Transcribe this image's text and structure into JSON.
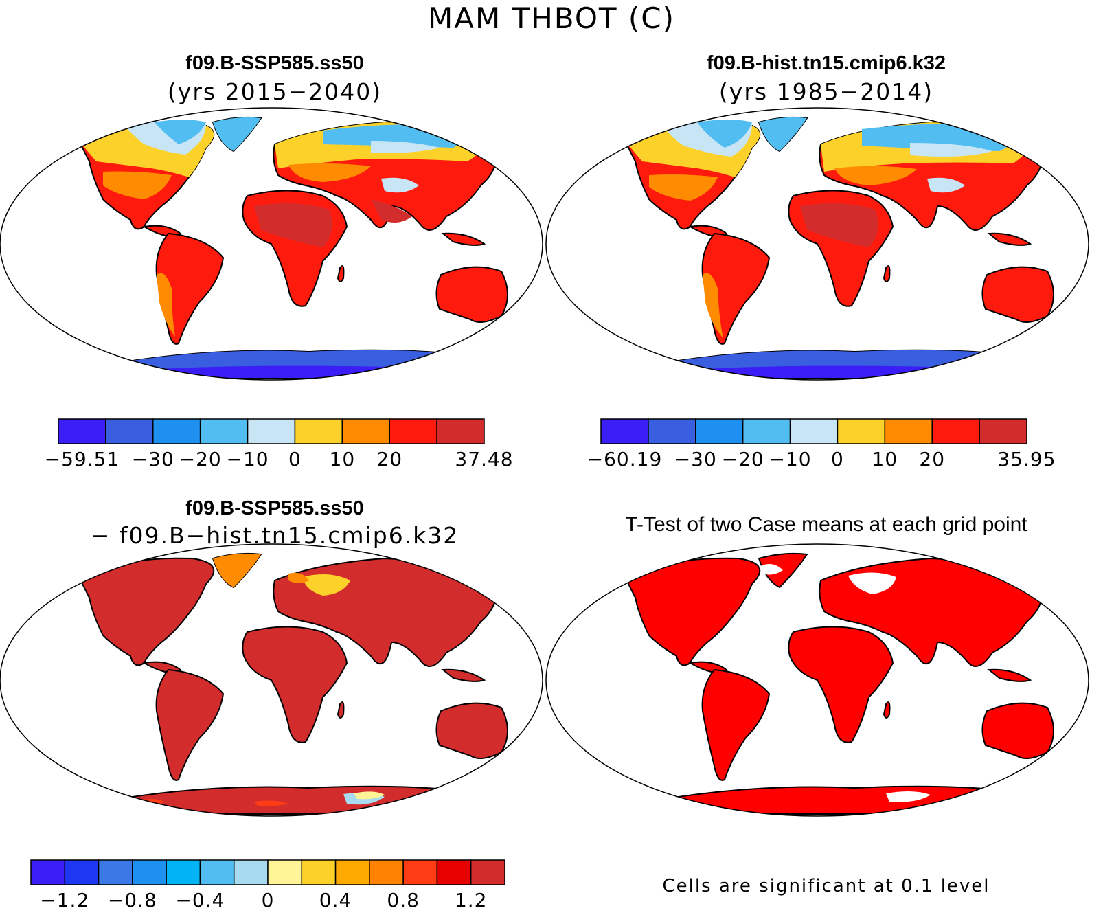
{
  "figure": {
    "title": "MAM THBOT (C)",
    "colors": {
      "land": "#d62f2f",
      "sig_red": "#ff0000",
      "outline": "#000000"
    }
  },
  "panels": {
    "top_left": {
      "title": "f09.B-SSP585.ss50",
      "subtitle": "(yrs 2015−2040)",
      "colorbar": {
        "colors": [
          "#3a1ef5",
          "#3a5ee0",
          "#1e90f0",
          "#52bdf0",
          "#c8e5f5",
          "#fcd22a",
          "#ff8c00",
          "#ff1a0e",
          "#d22c2c"
        ],
        "ticks": [
          "−59.51",
          "−30",
          "−20",
          "−10",
          "0",
          "10",
          "20",
          "37.48"
        ]
      }
    },
    "top_right": {
      "title": "f09.B-hist.tn15.cmip6.k32",
      "subtitle": "(yrs 1985−2014)",
      "colorbar": {
        "colors": [
          "#3a1ef5",
          "#3a5ee0",
          "#1e90f0",
          "#52bdf0",
          "#c8e5f5",
          "#fcd22a",
          "#ff8c00",
          "#ff1a0e",
          "#d22c2c"
        ],
        "ticks": [
          "−60.19",
          "−30",
          "−20",
          "−10",
          "0",
          "10",
          "20",
          "35.95"
        ]
      }
    },
    "bottom_left": {
      "title": "f09.B-SSP585.ss50",
      "subtitle": "− f09.B−hist.tn15.cmip6.k32",
      "colorbar": {
        "colors": [
          "#3a1ef5",
          "#1e37f0",
          "#3c78e6",
          "#1e90f0",
          "#00b4f5",
          "#52bdf0",
          "#a8daf0",
          "#fff596",
          "#fcd22a",
          "#ffaa00",
          "#ff8200",
          "#ff3c14",
          "#e60000",
          "#d22c2c"
        ],
        "ticks": [
          "−1.2",
          "−0.8",
          "−0.4",
          "0",
          "0.4",
          "0.8",
          "1.2"
        ]
      }
    },
    "bottom_right": {
      "title": "T-Test of two Case means at each grid point",
      "note": "Cells are significant at 0.1 level"
    }
  }
}
